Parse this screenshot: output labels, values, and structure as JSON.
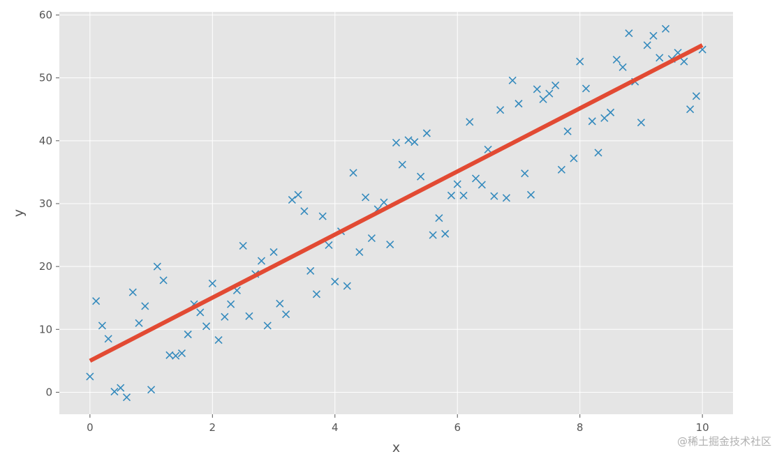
{
  "chart_data": {
    "type": "scatter",
    "title": "",
    "xlabel": "x",
    "ylabel": "y",
    "xlim": [
      -0.5,
      10.5
    ],
    "ylim": [
      -3.5,
      60.5
    ],
    "xticks": [
      0,
      2,
      4,
      6,
      8,
      10
    ],
    "yticks": [
      0,
      10,
      20,
      30,
      40,
      50,
      60
    ],
    "grid": true,
    "style": "ggplot",
    "background_color": "#e5e5e5",
    "grid_color": "#ffffff",
    "series": [
      {
        "kind": "scatter",
        "marker": "x",
        "color": "#348abd",
        "x": [
          0,
          0.1,
          0.2,
          0.3,
          0.4,
          0.5,
          0.6,
          0.7,
          0.8,
          0.9,
          1.0,
          1.1,
          1.2,
          1.3,
          1.4,
          1.5,
          1.6,
          1.7,
          1.8,
          1.9,
          2.0,
          2.1,
          2.2,
          2.3,
          2.4,
          2.5,
          2.6,
          2.7,
          2.8,
          2.9,
          3.0,
          3.1,
          3.2,
          3.3,
          3.4,
          3.5,
          3.6,
          3.7,
          3.8,
          3.9,
          4.0,
          4.1,
          4.2,
          4.3,
          4.4,
          4.5,
          4.6,
          4.7,
          4.8,
          4.9,
          5.0,
          5.1,
          5.2,
          5.3,
          5.4,
          5.5,
          5.6,
          5.7,
          5.8,
          5.9,
          6.0,
          6.1,
          6.2,
          6.3,
          6.4,
          6.5,
          6.6,
          6.7,
          6.8,
          6.9,
          7.0,
          7.1,
          7.2,
          7.3,
          7.4,
          7.5,
          7.6,
          7.7,
          7.8,
          7.9,
          8.0,
          8.1,
          8.2,
          8.3,
          8.4,
          8.5,
          8.6,
          8.7,
          8.8,
          8.9,
          9.0,
          9.1,
          9.2,
          9.3,
          9.4,
          9.5,
          9.6,
          9.7,
          9.8,
          9.9,
          10.0
        ],
        "y": [
          2.5,
          14.5,
          10.6,
          8.5,
          0.1,
          0.7,
          -0.8,
          15.9,
          11.0,
          13.7,
          0.4,
          20.0,
          17.8,
          5.9,
          5.8,
          6.2,
          9.2,
          14.0,
          12.7,
          10.5,
          17.3,
          8.3,
          12.0,
          14.0,
          16.2,
          23.3,
          12.1,
          18.8,
          20.9,
          10.6,
          22.3,
          14.1,
          12.4,
          30.6,
          31.4,
          28.8,
          19.3,
          15.6,
          28.0,
          23.4,
          17.6,
          25.6,
          16.9,
          34.9,
          22.3,
          31.0,
          24.5,
          29.1,
          30.2,
          23.5,
          39.7,
          36.2,
          40.1,
          39.8,
          34.3,
          41.2,
          25.0,
          27.7,
          25.2,
          31.3,
          33.1,
          31.3,
          43.0,
          34.0,
          33.0,
          38.6,
          31.2,
          44.9,
          30.9,
          49.6,
          45.9,
          34.8,
          31.4,
          48.2,
          46.6,
          47.5,
          48.8,
          35.4,
          41.5,
          37.2,
          52.6,
          48.3,
          43.1,
          38.1,
          43.6,
          44.5,
          52.9,
          51.7,
          57.1,
          49.4,
          42.9,
          55.2,
          56.7,
          53.2,
          57.8,
          53.0,
          54.0,
          52.6,
          45.0,
          47.1,
          54.5
        ]
      },
      {
        "kind": "line",
        "color": "#e24a33",
        "x": [
          0,
          10
        ],
        "y": [
          5.0,
          55.2
        ]
      }
    ]
  },
  "watermark": "@稀土掘金技术社区"
}
